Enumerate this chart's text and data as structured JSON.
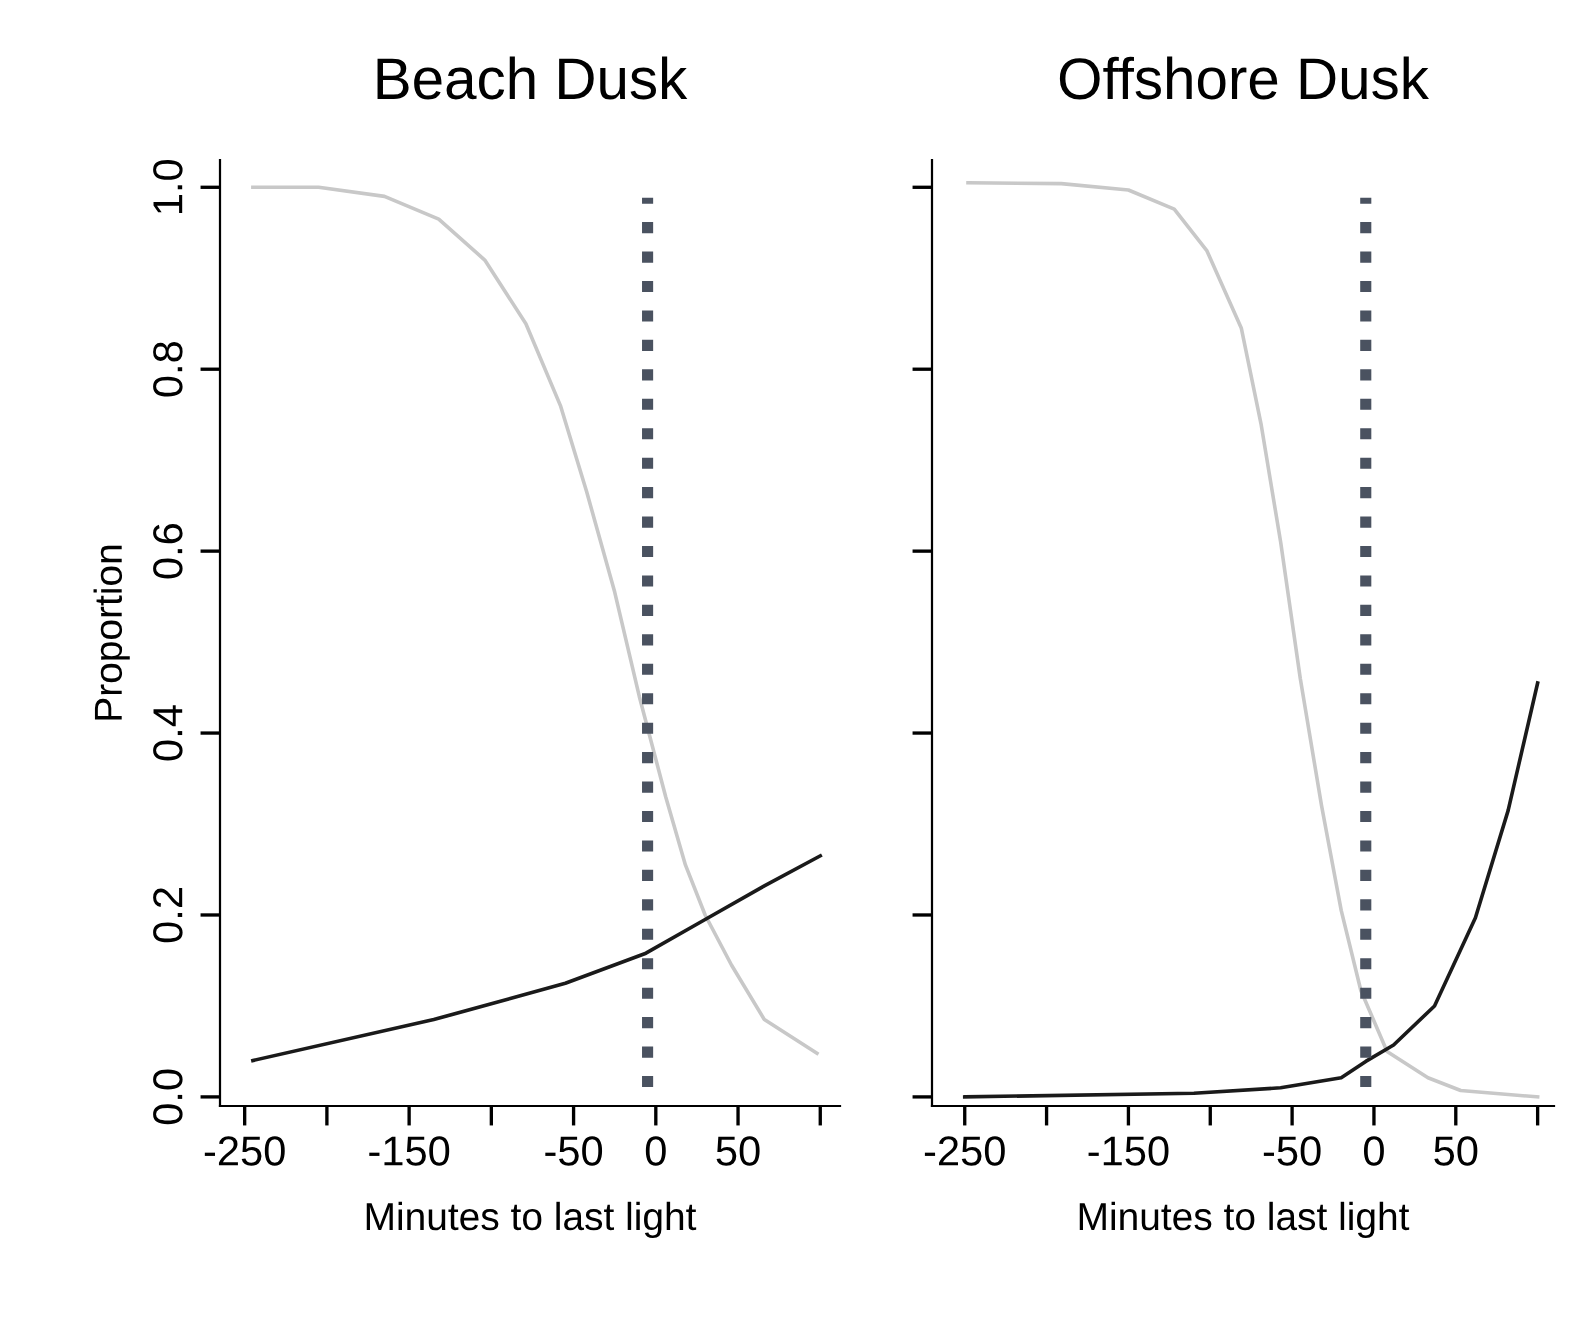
{
  "chart_data": [
    {
      "type": "line",
      "title": "Beach Dusk",
      "xlabel": "Minutes to last light",
      "ylabel": "Proportion",
      "xlim": [
        -265,
        112
      ],
      "ylim": [
        -0.01,
        1.03
      ],
      "xticks": [
        -250,
        {
          "value": -200,
          "label": null
        },
        -150,
        {
          "value": -100,
          "label": null
        },
        -50,
        0,
        50,
        {
          "value": 100,
          "label": null
        }
      ],
      "yticks": [
        {
          "value": 0,
          "label": "0.0"
        },
        {
          "value": 0.2,
          "label": "0.2"
        },
        {
          "value": 0.4,
          "label": "0.4"
        },
        {
          "value": 0.6,
          "label": "0.6"
        },
        {
          "value": 0.8,
          "label": "0.8"
        },
        {
          "value": 1,
          "label": "1.0"
        }
      ],
      "grid": false,
      "legend": false,
      "series": [
        {
          "color": "#c8c8c8",
          "x": [
            -245,
            -205,
            -165,
            -132,
            -104,
            -79,
            -58,
            -42,
            -25,
            -10,
            6,
            18,
            30,
            46,
            66,
            98
          ],
          "values": [
            1.0,
            1.0,
            0.99,
            0.965,
            0.92,
            0.85,
            0.76,
            0.665,
            0.555,
            0.44,
            0.33,
            0.255,
            0.2,
            0.145,
            0.085,
            0.048
          ]
        },
        {
          "color": "#1a1a1a",
          "x": [
            -245,
            -135,
            -55,
            -6,
            30,
            66,
            100
          ],
          "values": [
            0.04,
            0.085,
            0.125,
            0.158,
            0.195,
            0.232,
            0.265
          ]
        }
      ],
      "ref_lines": [
        {
          "axis": "x",
          "value": -5,
          "color": "#4a5260",
          "line_style": "dotted",
          "label": null
        }
      ]
    },
    {
      "type": "line",
      "title": "Offshore Dusk",
      "xlabel": "Minutes to last light",
      "xlim": [
        -270,
        110
      ],
      "ylim": [
        -0.01,
        1.03
      ],
      "tick_labels": "x",
      "xticks": [
        -250,
        {
          "value": -200,
          "label": null
        },
        -150,
        {
          "value": -100,
          "label": null
        },
        -50,
        0,
        50,
        {
          "value": 100,
          "label": null
        }
      ],
      "yticks": [
        {
          "value": 0,
          "label": null
        },
        {
          "value": 0.2,
          "label": null
        },
        {
          "value": 0.4,
          "label": null
        },
        {
          "value": 0.6,
          "label": null
        },
        {
          "value": 0.8,
          "label": null
        },
        {
          "value": 1,
          "label": null
        }
      ],
      "grid": false,
      "legend": false,
      "series": [
        {
          "color": "#c8c8c8",
          "x": [
            -248,
            -191,
            -150,
            -122,
            -102,
            -81,
            -69,
            -57,
            -45,
            -32,
            -20,
            -8,
            8,
            33,
            53,
            100
          ],
          "values": [
            1.005,
            1.004,
            0.997,
            0.976,
            0.93,
            0.845,
            0.74,
            0.61,
            0.46,
            0.32,
            0.205,
            0.117,
            0.05,
            0.021,
            0.007,
            0.0
          ]
        },
        {
          "color": "#1a1a1a",
          "x": [
            -250,
            -110,
            -57,
            -20,
            -5,
            12,
            37,
            62,
            82,
            100
          ],
          "values": [
            0.0,
            0.004,
            0.01,
            0.021,
            0.039,
            0.057,
            0.1,
            0.197,
            0.315,
            0.455
          ]
        }
      ],
      "ref_lines": [
        {
          "axis": "x",
          "value": -5,
          "color": "#4a5260",
          "line_style": "dotted",
          "label": null
        }
      ]
    }
  ]
}
